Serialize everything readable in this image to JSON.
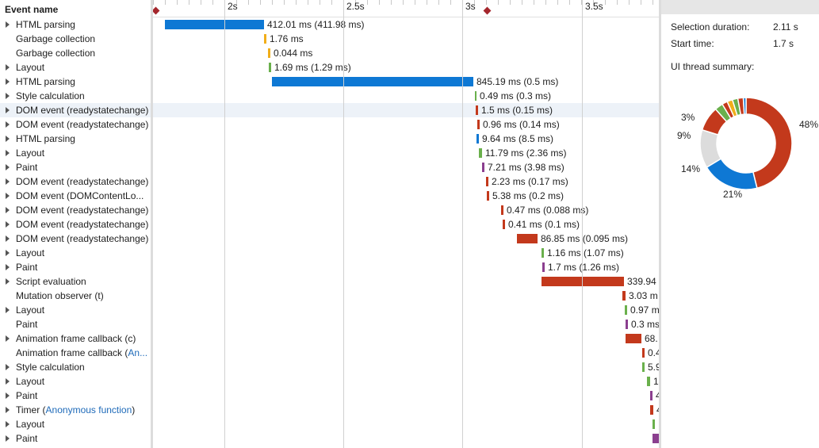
{
  "names_header": "Event name",
  "events": [
    {
      "name": "HTML parsing",
      "expandable": true,
      "color": "#0e78d4",
      "label": "412.01 ms (411.98 ms)"
    },
    {
      "name": "Garbage collection",
      "expandable": false,
      "color": "#f1ae1a",
      "label": "1.76 ms"
    },
    {
      "name": "Garbage collection",
      "expandable": false,
      "color": "#f1ae1a",
      "label": "0.044 ms"
    },
    {
      "name": "Layout",
      "expandable": true,
      "color": "#6ab04c",
      "label": "1.69 ms (1.29 ms)"
    },
    {
      "name": "HTML parsing",
      "expandable": true,
      "color": "#0e78d4",
      "label": "845.19 ms (0.5 ms)"
    },
    {
      "name": "Style calculation",
      "expandable": true,
      "color": "#6ab04c",
      "label": "0.49 ms (0.3 ms)"
    },
    {
      "name": "DOM event (readystatechange)",
      "expandable": true,
      "color": "#c3391c",
      "label": "1.5 ms (0.15 ms)"
    },
    {
      "name": "DOM event (readystatechange)",
      "expandable": true,
      "color": "#c3391c",
      "label": "0.96 ms (0.14 ms)"
    },
    {
      "name": "HTML parsing",
      "expandable": true,
      "color": "#0e78d4",
      "label": "9.64 ms (8.5 ms)"
    },
    {
      "name": "Layout",
      "expandable": true,
      "color": "#6ab04c",
      "label": "11.79 ms (2.36 ms)"
    },
    {
      "name": "Paint",
      "expandable": true,
      "color": "#8b3f8f",
      "label": "7.21 ms (3.98 ms)"
    },
    {
      "name": "DOM event (readystatechange)",
      "expandable": true,
      "color": "#c3391c",
      "label": "2.23 ms (0.17 ms)"
    },
    {
      "name": "DOM event (DOMContentLo...",
      "expandable": true,
      "color": "#c3391c",
      "label": "5.38 ms (0.2 ms)"
    },
    {
      "name": "DOM event (readystatechange)",
      "expandable": true,
      "color": "#c3391c",
      "label": "0.47 ms (0.088 ms)"
    },
    {
      "name": "DOM event (readystatechange)",
      "expandable": true,
      "color": "#c3391c",
      "label": "0.41 ms (0.1 ms)"
    },
    {
      "name": "DOM event (readystatechange)",
      "expandable": true,
      "color": "#c3391c",
      "label": "86.85 ms (0.095 ms)"
    },
    {
      "name": "Layout",
      "expandable": true,
      "color": "#6ab04c",
      "label": "1.16 ms (1.07 ms)"
    },
    {
      "name": "Paint",
      "expandable": true,
      "color": "#8b3f8f",
      "label": "1.7 ms (1.26 ms)"
    },
    {
      "name": "Script evaluation",
      "expandable": true,
      "color": "#c3391c",
      "label": "339.94"
    },
    {
      "name": "Mutation observer (t)",
      "expandable": false,
      "color": "#c3391c",
      "label": "3.03 m"
    },
    {
      "name": "Layout",
      "expandable": true,
      "color": "#6ab04c",
      "label": "0.97 m"
    },
    {
      "name": "Paint",
      "expandable": false,
      "color": "#8b3f8f",
      "label": "0.3 ms"
    },
    {
      "name": "Animation frame callback (c)",
      "expandable": true,
      "color": "#c3391c",
      "label": "68."
    },
    {
      "name": "Animation frame callback (",
      "name_link": "An...",
      "name_suffix": "",
      "expandable": false,
      "color": "#c3391c",
      "label": "0.4"
    },
    {
      "name": "Style calculation",
      "expandable": true,
      "color": "#6ab04c",
      "label": "5.9"
    },
    {
      "name": "Layout",
      "expandable": true,
      "color": "#6ab04c",
      "label": "1"
    },
    {
      "name": "Paint",
      "expandable": true,
      "color": "#8b3f8f",
      "label": "4"
    },
    {
      "name": "Timer (",
      "name_link": "Anonymous function",
      "name_suffix": ")",
      "expandable": true,
      "color": "#c3391c",
      "label": "4"
    },
    {
      "name": "Layout",
      "expandable": true,
      "color": "#6ab04c",
      "label": ""
    },
    {
      "name": "Paint",
      "expandable": true,
      "color": "#8b3f8f",
      "label": ""
    }
  ],
  "ruler": {
    "labels": [
      "2s",
      "2.5s",
      "3s",
      "3.5s"
    ]
  },
  "summary": {
    "selection_duration_label": "Selection duration:",
    "selection_duration_value": "2.11 s",
    "start_time_label": "Start time:",
    "start_time_value": "1.7 s",
    "ui_thread_label": "UI thread summary:",
    "slices": [
      {
        "pct": 48,
        "label": "48%",
        "color": "#c3391c"
      },
      {
        "pct": 21,
        "label": "21%",
        "color": "#0e78d4"
      },
      {
        "pct": 14,
        "label": "14%",
        "color": "#dcdcdc"
      },
      {
        "pct": 9,
        "label": "9%",
        "color": "#c3391c"
      },
      {
        "pct": 3,
        "label": "3%",
        "color": "#6ab04c"
      },
      {
        "pct": 2,
        "label": "",
        "color": "#c3391c"
      },
      {
        "pct": 2,
        "label": "",
        "color": "#f1ae1a"
      },
      {
        "pct": 2,
        "label": "",
        "color": "#6ab04c"
      },
      {
        "pct": 2,
        "label": "",
        "color": "#c3391c"
      },
      {
        "pct": 1,
        "label": "",
        "color": "#0e78d4"
      }
    ]
  }
}
